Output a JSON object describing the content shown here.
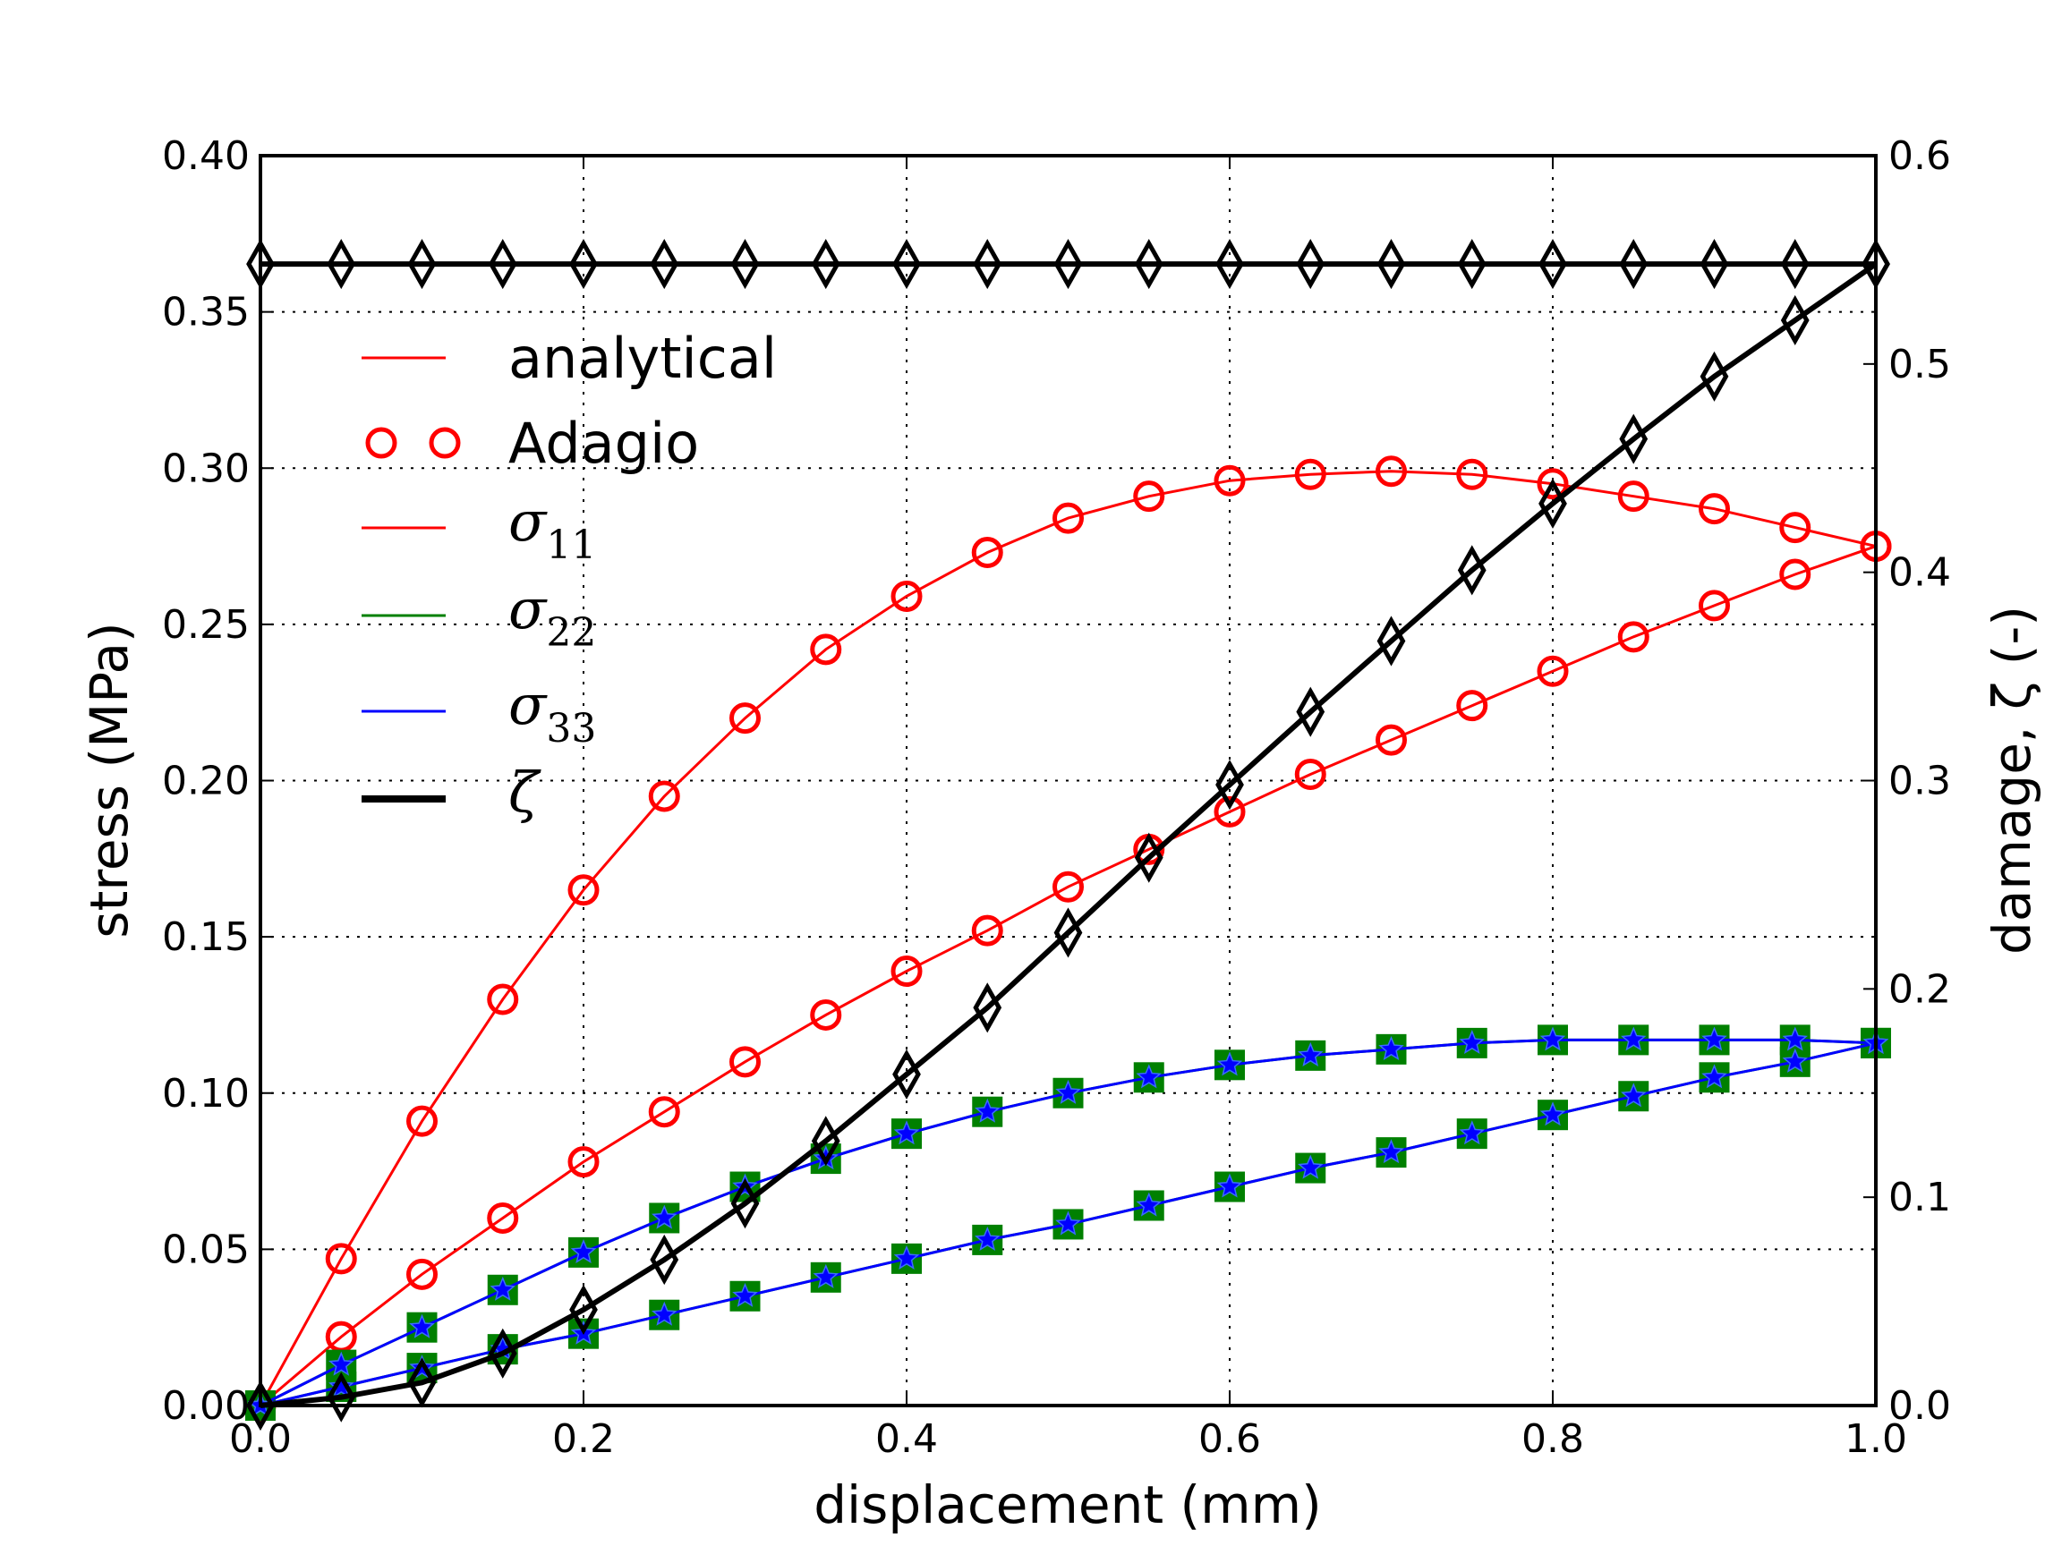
{
  "chart_data": {
    "type": "line",
    "xlabel": "displacement (mm)",
    "ylabel": "stress (MPa)",
    "y2label": "damage, ζ (-)",
    "xlim": [
      0.0,
      1.0
    ],
    "ylim": [
      0.0,
      0.4
    ],
    "y2lim": [
      0.0,
      0.6
    ],
    "xticks": [
      "0.0",
      "0.2",
      "0.4",
      "0.6",
      "0.8",
      "1.0"
    ],
    "yticks": [
      "0.00",
      "0.05",
      "0.10",
      "0.15",
      "0.20",
      "0.25",
      "0.30",
      "0.35",
      "0.40"
    ],
    "y2ticks": [
      "0.0",
      "0.1",
      "0.2",
      "0.3",
      "0.4",
      "0.5",
      "0.6"
    ],
    "grid": true,
    "legend_placement": "upper-left",
    "colors": {
      "red": "#ff0000",
      "green": "#008000",
      "blue": "#0000ff",
      "black": "#000000"
    },
    "x": [
      0.0,
      0.05,
      0.1,
      0.15,
      0.2,
      0.25,
      0.3,
      0.35,
      0.4,
      0.45,
      0.5,
      0.55,
      0.6,
      0.65,
      0.7,
      0.75,
      0.8,
      0.85,
      0.9,
      0.95,
      1.0
    ],
    "series": [
      {
        "name": "σ11",
        "axis": "left",
        "color": "#ff0000",
        "marker": "circle",
        "lw": 3,
        "values": [
          0,
          0.047,
          0.091,
          0.13,
          0.165,
          0.195,
          0.22,
          0.242,
          0.259,
          0.273,
          0.284,
          0.291,
          0.296,
          0.298,
          0.299,
          0.298,
          0.295,
          0.291,
          0.287,
          0.281,
          0.275
        ]
      },
      {
        "name": "σ11",
        "axis": "left",
        "color": "#ff0000",
        "marker": "circle",
        "lw": 3,
        "values": [
          0,
          0.022,
          0.042,
          0.06,
          0.078,
          0.094,
          0.11,
          0.125,
          0.139,
          0.152,
          0.166,
          0.178,
          0.19,
          0.202,
          0.213,
          0.224,
          0.235,
          0.246,
          0.256,
          0.266,
          0.275
        ]
      },
      {
        "name": "σ22",
        "axis": "left",
        "color": "#008000",
        "marker": "square",
        "lw": 3,
        "values": [
          0,
          0.013,
          0.025,
          0.037,
          0.049,
          0.06,
          0.07,
          0.079,
          0.087,
          0.094,
          0.1,
          0.105,
          0.109,
          0.112,
          0.114,
          0.116,
          0.117,
          0.117,
          0.117,
          0.117,
          0.116
        ]
      },
      {
        "name": "σ22",
        "axis": "left",
        "color": "#008000",
        "marker": "square",
        "lw": 3,
        "values": [
          0,
          0.006,
          0.012,
          0.018,
          0.023,
          0.029,
          0.035,
          0.041,
          0.047,
          0.053,
          0.058,
          0.064,
          0.07,
          0.076,
          0.081,
          0.087,
          0.093,
          0.099,
          0.105,
          0.11,
          0.116
        ]
      },
      {
        "name": "σ33",
        "axis": "left",
        "color": "#0000ff",
        "marker": "star",
        "lw": 3,
        "values": [
          0,
          0.013,
          0.025,
          0.037,
          0.049,
          0.06,
          0.07,
          0.079,
          0.087,
          0.094,
          0.1,
          0.105,
          0.109,
          0.112,
          0.114,
          0.116,
          0.117,
          0.117,
          0.117,
          0.117,
          0.116
        ]
      },
      {
        "name": "σ33",
        "axis": "left",
        "color": "#0000ff",
        "marker": "star",
        "lw": 3,
        "values": [
          0,
          0.006,
          0.012,
          0.018,
          0.023,
          0.029,
          0.035,
          0.041,
          0.047,
          0.053,
          0.058,
          0.064,
          0.07,
          0.076,
          0.081,
          0.087,
          0.093,
          0.099,
          0.105,
          0.11,
          0.116
        ]
      },
      {
        "name": "ζ",
        "axis": "right",
        "color": "#000000",
        "marker": "diamond",
        "lw": 6,
        "values": [
          0,
          0.004,
          0.011,
          0.025,
          0.046,
          0.07,
          0.097,
          0.127,
          0.159,
          0.191,
          0.227,
          0.263,
          0.298,
          0.333,
          0.367,
          0.401,
          0.433,
          0.464,
          0.494,
          0.521,
          0.548
        ]
      },
      {
        "name": "ζ",
        "axis": "right",
        "color": "#000000",
        "marker": "diamond",
        "lw": 6,
        "values": [
          0.548,
          0.548,
          0.548,
          0.548,
          0.548,
          0.548,
          0.548,
          0.548,
          0.548,
          0.548,
          0.548,
          0.548,
          0.548,
          0.548,
          0.548,
          0.548,
          0.548,
          0.548,
          0.548,
          0.548,
          0.548
        ]
      }
    ],
    "legend": [
      {
        "label": "analytical",
        "style": "line",
        "color": "#ff0000"
      },
      {
        "label": "Adagio",
        "style": "circles",
        "color": "#ff0000"
      },
      {
        "symbol": "σ",
        "sub": "11",
        "style": "line",
        "color": "#ff0000"
      },
      {
        "symbol": "σ",
        "sub": "22",
        "style": "line",
        "color": "#008000"
      },
      {
        "symbol": "σ",
        "sub": "33",
        "style": "line",
        "color": "#0000ff"
      },
      {
        "symbol": "ζ",
        "sub": "",
        "style": "thick",
        "color": "#000000"
      }
    ]
  }
}
